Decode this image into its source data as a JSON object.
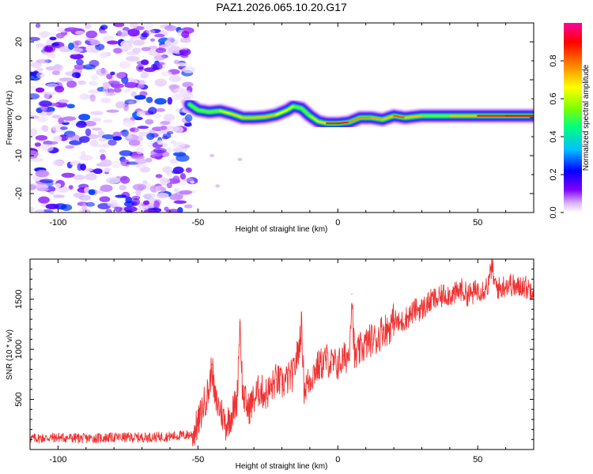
{
  "chart_data": [
    {
      "type": "heatmap",
      "title": "PAZ1.2026.065.10.20.G17",
      "xlabel": "Height of straight line (km)",
      "ylabel": "Frequency (Hz)",
      "xlim": [
        -110,
        70
      ],
      "ylim": [
        -25,
        25
      ],
      "xticks": [
        -100,
        -50,
        0,
        50
      ],
      "yticks": [
        -20,
        -10,
        0,
        10,
        20
      ],
      "colorbar": {
        "label": "Normalized spectral amplitude",
        "range": [
          0.0,
          1.0
        ],
        "ticks": [
          "0.0",
          "0.2",
          "0.4",
          "0.6",
          "0.8"
        ],
        "colors": [
          "#ffffff",
          "#d9b3ff",
          "#8000ff",
          "#0000ff",
          "#00bfff",
          "#00ff80",
          "#80ff00",
          "#ffff00",
          "#ff8000",
          "#ff0000",
          "#ff00a0"
        ]
      },
      "noise_region": {
        "x": [
          -110,
          -52
        ],
        "y": [
          -25,
          25
        ],
        "amplitude": 0.25
      },
      "ridge": {
        "x": [
          -53,
          -50,
          -46,
          -42,
          -38,
          -34,
          -30,
          -26,
          -22,
          -18,
          -16,
          -13,
          -10,
          -7,
          -4,
          0,
          4,
          8,
          12,
          16,
          20,
          24,
          30,
          40,
          50,
          60,
          70
        ],
        "frequency": [
          3.5,
          2.0,
          1.5,
          1.8,
          1.0,
          0.0,
          0.0,
          0.2,
          0.8,
          2.0,
          3.0,
          2.5,
          0.5,
          -1.0,
          -1.5,
          -1.5,
          -1.2,
          0.0,
          0.0,
          -0.5,
          0.5,
          0.0,
          0.5,
          0.5,
          0.5,
          0.5,
          0.5
        ],
        "amplitude": [
          0.4,
          0.5,
          0.55,
          0.6,
          0.65,
          0.75,
          0.7,
          0.75,
          0.7,
          0.6,
          0.6,
          0.55,
          0.6,
          0.6,
          0.8,
          0.95,
          0.8,
          0.75,
          0.8,
          0.7,
          0.75,
          0.9,
          0.55,
          0.6,
          0.85,
          0.9,
          0.9
        ]
      }
    },
    {
      "type": "line",
      "xlabel": "Height of straight line (km)",
      "ylabel": "SNR (10 * v/v)",
      "xlim": [
        -110,
        70
      ],
      "ylim": [
        0,
        1900
      ],
      "xticks": [
        -100,
        -50,
        0,
        50
      ],
      "yticks": [
        500,
        1000,
        1500
      ],
      "series": [
        {
          "name": "SNR",
          "color": "#ee3333",
          "x": [
            -110,
            -100,
            -90,
            -80,
            -70,
            -60,
            -52,
            -50,
            -48,
            -46,
            -45,
            -44,
            -42,
            -40,
            -38,
            -36,
            -35,
            -34,
            -32,
            -30,
            -28,
            -26,
            -24,
            -22,
            -20,
            -18,
            -16,
            -14,
            -13,
            -12,
            -10,
            -8,
            -6,
            -4,
            -2,
            0,
            2,
            4,
            5,
            6,
            8,
            10,
            12,
            14,
            16,
            18,
            20,
            22,
            24,
            26,
            28,
            30,
            32,
            34,
            36,
            38,
            40,
            42,
            44,
            46,
            48,
            50,
            52,
            54,
            55,
            56,
            58,
            60,
            62,
            64,
            66,
            68,
            70
          ],
          "y": [
            110,
            120,
            110,
            120,
            120,
            130,
            150,
            250,
            450,
            600,
            850,
            500,
            400,
            250,
            350,
            500,
            1300,
            550,
            400,
            500,
            600,
            550,
            600,
            700,
            650,
            700,
            750,
            1000,
            1250,
            600,
            700,
            800,
            850,
            900,
            850,
            850,
            900,
            950,
            1550,
            900,
            1000,
            1050,
            1100,
            1100,
            1200,
            1200,
            1300,
            1250,
            1300,
            1350,
            1400,
            1400,
            1450,
            1500,
            1500,
            1550,
            1550,
            1550,
            1600,
            1550,
            1550,
            1600,
            1600,
            1650,
            1850,
            1650,
            1600,
            1650,
            1650,
            1600,
            1650,
            1600,
            1620
          ]
        }
      ]
    }
  ]
}
